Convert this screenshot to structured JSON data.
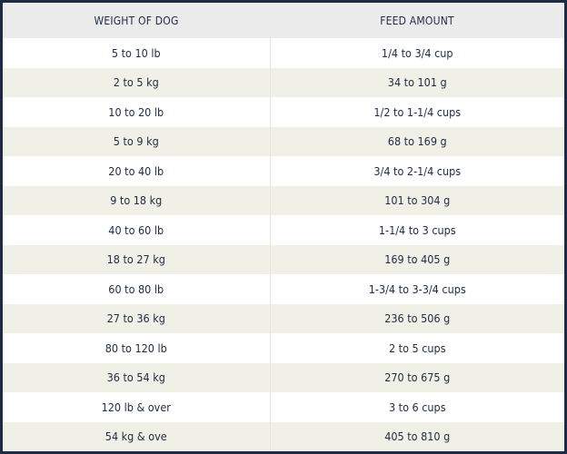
{
  "table": {
    "headers": [
      "WEIGHT OF DOG",
      "FEED AMOUNT"
    ],
    "rows": [
      {
        "weight": "5 to 10 lb",
        "amount": "1/4 to 3/4 cup"
      },
      {
        "weight": "2 to 5 kg",
        "amount": "34 to 101 g"
      },
      {
        "weight": "10 to 20 lb",
        "amount": "1/2 to 1-1/4 cups"
      },
      {
        "weight": "5 to 9 kg",
        "amount": "68 to 169 g"
      },
      {
        "weight": "20 to 40 lb",
        "amount": "3/4 to 2-1/4 cups"
      },
      {
        "weight": "9 to 18 kg",
        "amount": "101 to 304 g"
      },
      {
        "weight": "40 to 60 lb",
        "amount": "1-1/4 to 3 cups"
      },
      {
        "weight": "18 to 27 kg",
        "amount": "169 to 405 g"
      },
      {
        "weight": "60 to 80 lb",
        "amount": "1-3/4 to 3-3/4 cups"
      },
      {
        "weight": "27 to 36 kg",
        "amount": "236 to 506 g"
      },
      {
        "weight": "80 to 120 lb",
        "amount": "2 to 5 cups"
      },
      {
        "weight": "36 to 54 kg",
        "amount": "270 to 675 g"
      },
      {
        "weight": "120 lb & over",
        "amount": "3 to 6 cups"
      },
      {
        "weight": "54 kg & ove",
        "amount": "405 to 810 g"
      }
    ]
  },
  "colors": {
    "text": "#1f2b45",
    "border": "#1f2b45",
    "header_bg": "#ebebeb",
    "stripe_bg": "#f0f0e6"
  }
}
